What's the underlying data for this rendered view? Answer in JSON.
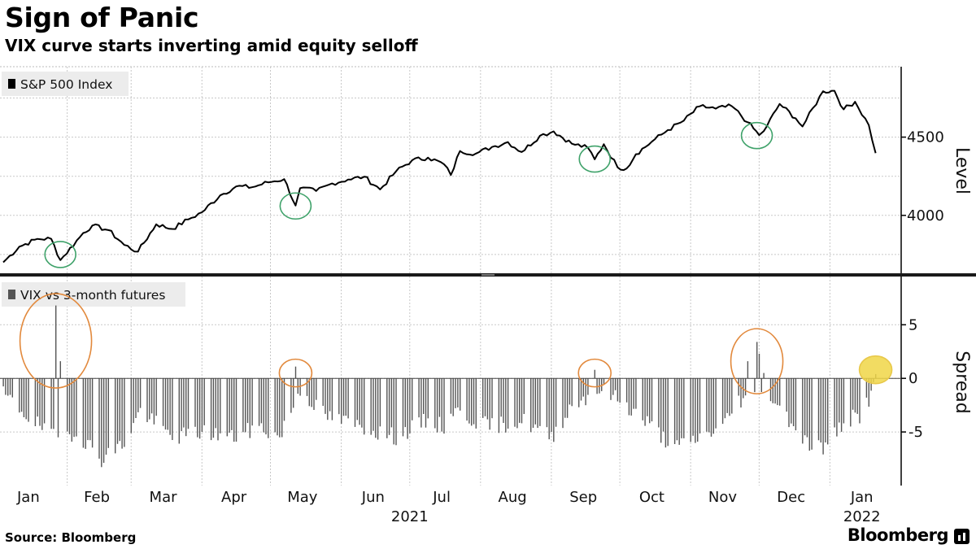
{
  "header": {
    "title": "Sign of Panic",
    "subtitle": "VIX curve starts inverting amid equity selloff"
  },
  "footer": {
    "source": "Source: Bloomberg",
    "brand": "Bloomberg"
  },
  "chart_data": [
    {
      "type": "line",
      "legend": "S&P 500 Index",
      "ylabel": "Level",
      "ylim": [
        3630,
        4950
      ],
      "yticks": [
        4000,
        4500
      ],
      "grid": true,
      "line_color": "#000000",
      "x_dates": [
        "2021-01-04",
        "2021-01-11",
        "2021-01-19",
        "2021-01-25",
        "2021-01-29",
        "2021-02-08",
        "2021-02-12",
        "2021-02-19",
        "2021-02-26",
        "2021-03-04",
        "2021-03-12",
        "2021-03-19",
        "2021-03-26",
        "2021-04-01",
        "2021-04-09",
        "2021-04-16",
        "2021-04-23",
        "2021-04-30",
        "2021-05-07",
        "2021-05-12",
        "2021-05-14",
        "2021-05-21",
        "2021-05-28",
        "2021-06-04",
        "2021-06-11",
        "2021-06-18",
        "2021-06-25",
        "2021-07-02",
        "2021-07-09",
        "2021-07-16",
        "2021-07-19",
        "2021-07-23",
        "2021-07-30",
        "2021-08-06",
        "2021-08-13",
        "2021-08-19",
        "2021-08-27",
        "2021-09-02",
        "2021-09-10",
        "2021-09-17",
        "2021-09-20",
        "2021-09-24",
        "2021-09-30",
        "2021-10-04",
        "2021-10-08",
        "2021-10-15",
        "2021-10-22",
        "2021-10-29",
        "2021-11-05",
        "2021-11-12",
        "2021-11-19",
        "2021-11-26",
        "2021-12-01",
        "2021-12-03",
        "2021-12-10",
        "2021-12-17",
        "2021-12-20",
        "2021-12-29",
        "2022-01-03",
        "2022-01-07",
        "2022-01-12",
        "2022-01-18",
        "2022-01-21"
      ],
      "values": [
        3700,
        3800,
        3850,
        3850,
        3714,
        3887,
        3935,
        3906,
        3811,
        3768,
        3943,
        3913,
        3974,
        4020,
        4128,
        4185,
        4180,
        4211,
        4232,
        4063,
        4174,
        4156,
        4204,
        4229,
        4247,
        4166,
        4281,
        4352,
        4369,
        4327,
        4258,
        4411,
        4395,
        4437,
        4468,
        4405,
        4509,
        4537,
        4458,
        4432,
        4358,
        4455,
        4307,
        4300,
        4391,
        4471,
        4545,
        4605,
        4697,
        4682,
        4698,
        4595,
        4513,
        4538,
        4712,
        4620,
        4568,
        4793,
        4796,
        4677,
        4726,
        4577,
        4398
      ],
      "highlights": [
        {
          "date": "2021-01-29",
          "value": 3750,
          "color": "#3fa26a"
        },
        {
          "date": "2021-05-12",
          "value": 4060,
          "color": "#3fa26a"
        },
        {
          "date": "2021-09-20",
          "value": 4360,
          "color": "#3fa26a"
        },
        {
          "date": "2021-11-30",
          "value": 4510,
          "color": "#3fa26a"
        }
      ]
    },
    {
      "type": "bar",
      "legend": "VIX vs 3-month futures",
      "ylabel": "Spread",
      "ylim": [
        -10,
        9.5
      ],
      "yticks": [
        -5,
        0,
        5
      ],
      "grid": true,
      "bar_color": "#555555",
      "spikes": [
        {
          "date": "2021-01-27",
          "value": 6.8
        },
        {
          "date": "2021-01-29",
          "value": 1.6
        },
        {
          "date": "2021-05-12",
          "value": 1.1
        },
        {
          "date": "2021-09-20",
          "value": 0.8
        },
        {
          "date": "2021-11-26",
          "value": 1.6
        },
        {
          "date": "2021-11-30",
          "value": 3.4
        },
        {
          "date": "2021-12-01",
          "value": 2.3
        },
        {
          "date": "2021-12-03",
          "value": 0.5
        },
        {
          "date": "2022-01-21",
          "value": 0.4
        }
      ],
      "highlights": [
        {
          "date": "2021-01-27",
          "value": 3.5,
          "color": "#e2893c"
        },
        {
          "date": "2021-05-12",
          "value": 0.5,
          "color": "#e2893c"
        },
        {
          "date": "2021-09-20",
          "value": 0.5,
          "color": "#e2893c"
        },
        {
          "date": "2021-11-30",
          "value": 1.6,
          "color": "#e2893c"
        },
        {
          "date": "2022-01-21",
          "value": 0.8,
          "color": "#e8c84a"
        }
      ]
    }
  ],
  "x_axis": {
    "months": [
      {
        "label": "Jan",
        "date": "2021-01-15"
      },
      {
        "label": "Feb",
        "date": "2021-02-14"
      },
      {
        "label": "Mar",
        "date": "2021-03-15"
      },
      {
        "label": "Apr",
        "date": "2021-04-15"
      },
      {
        "label": "May",
        "date": "2021-05-15"
      },
      {
        "label": "Jun",
        "date": "2021-06-15"
      },
      {
        "label": "Jul",
        "date": "2021-07-15"
      },
      {
        "label": "Aug",
        "date": "2021-08-15"
      },
      {
        "label": "Sep",
        "date": "2021-09-15"
      },
      {
        "label": "Oct",
        "date": "2021-10-15"
      },
      {
        "label": "Nov",
        "date": "2021-11-15"
      },
      {
        "label": "Dec",
        "date": "2021-12-15"
      },
      {
        "label": "Jan",
        "date": "2022-01-15"
      }
    ],
    "years": [
      {
        "label": "2021",
        "date": "2021-07-01"
      },
      {
        "label": "2022",
        "date": "2022-01-15"
      }
    ],
    "start": "2021-01-04",
    "end": "2022-01-24"
  }
}
